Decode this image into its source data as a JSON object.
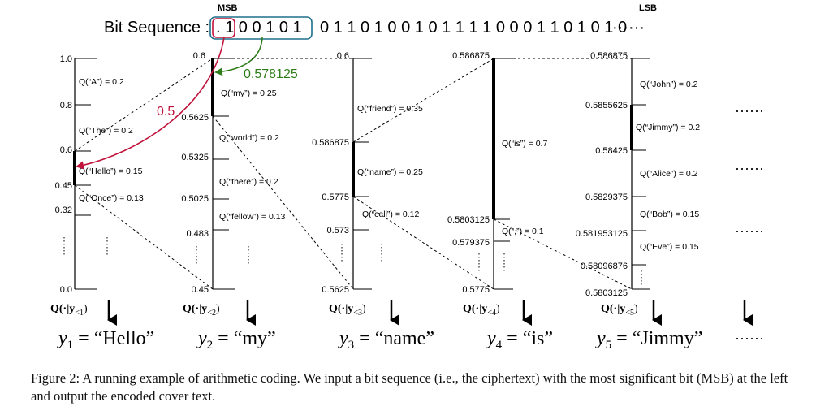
{
  "header": {
    "bit_sequence_label": "Bit Sequence :",
    "msb_label": "MSB",
    "lsb_label": "LSB",
    "bits_first": ". 1 0 0 1 0 1",
    "bits_rest": "0 1 1 0 1 0 0 1 0 1 1 1 1 0 0 0 1 1 0 1 0 1 0",
    "ellipsis": "······"
  },
  "arrows": {
    "red_value": "0.5",
    "green_value": "0.578125"
  },
  "colors": {
    "red": "#c0143c",
    "green": "#2e7d1a",
    "teal": "#1f6f8b",
    "black": "#000000"
  },
  "columns": [
    {
      "ticks": [
        "1.0",
        "0.8",
        "0.6",
        "0.45",
        "0.32",
        "0.0"
      ],
      "tokens": [
        "Q(“A”) = 0.2",
        "Q(“The”) = 0.2",
        "Q(“Hello”) = 0.15",
        "Q(“Once”) = 0.13"
      ],
      "dist_prefix": "Q(·|y",
      "dist_sub": "<1",
      "dist_suffix": ")",
      "output_var": "y",
      "output_sub": "1",
      "output_eq": " = ",
      "output_word": "“Hello”"
    },
    {
      "ticks": [
        "0.6",
        "0.5625",
        "0.5325",
        "0.5025",
        "0.483",
        "0.45"
      ],
      "tokens": [
        "Q(“my”) = 0.25",
        "Q(“world”) = 0.2",
        "Q(“there”) = 0.2",
        "Q(“fellow”) = 0.13"
      ],
      "dist_prefix": "Q(·|y",
      "dist_sub": "<2",
      "dist_suffix": ")",
      "output_var": "y",
      "output_sub": "2",
      "output_eq": " = ",
      "output_word": "“my”"
    },
    {
      "ticks": [
        "0.6",
        "0.586875",
        "0.5775",
        "0.573",
        "0.5625"
      ],
      "tokens": [
        "Q(“friend”) = 0.35",
        "Q(“name”) = 0.25",
        "Q(“cell”) = 0.12"
      ],
      "dist_prefix": "Q(·|y",
      "dist_sub": "<3",
      "dist_suffix": ")",
      "output_var": "y",
      "output_sub": "3",
      "output_eq": " = ",
      "output_word": "“name”"
    },
    {
      "ticks": [
        "0.586875",
        "0.5803125",
        "0.579375",
        "0.5775"
      ],
      "tokens": [
        "Q(“is”) = 0.7",
        "Q(“,”) = 0.1"
      ],
      "dist_prefix": "Q(·|y",
      "dist_sub": "<4",
      "dist_suffix": ")",
      "output_var": "y",
      "output_sub": "4",
      "output_eq": " = ",
      "output_word": "“is”"
    },
    {
      "ticks": [
        "0.586875",
        "0.5855625",
        "0.58425",
        "0.5829375",
        "0.581953125",
        "0.58096876",
        "0.5803125"
      ],
      "tokens": [
        "Q(“John”) = 0.2",
        "Q(“Jimmy”) = 0.2",
        "Q(“Alice”) = 0.2",
        "Q(“Bob”) = 0.15",
        "Q(“Eve”) = 0.15"
      ],
      "dist_prefix": "Q(·|y",
      "dist_sub": "<5",
      "dist_suffix": ")",
      "output_var": "y",
      "output_sub": "5",
      "output_eq": " = ",
      "output_word": "“Jimmy”"
    }
  ],
  "trailing_ellipsis": "······",
  "caption": "Figure 2: A running example of arithmetic coding. We input a bit sequence (i.e., the ciphertext) with the most significant bit (MSB) at the left and output the encoded cover text."
}
